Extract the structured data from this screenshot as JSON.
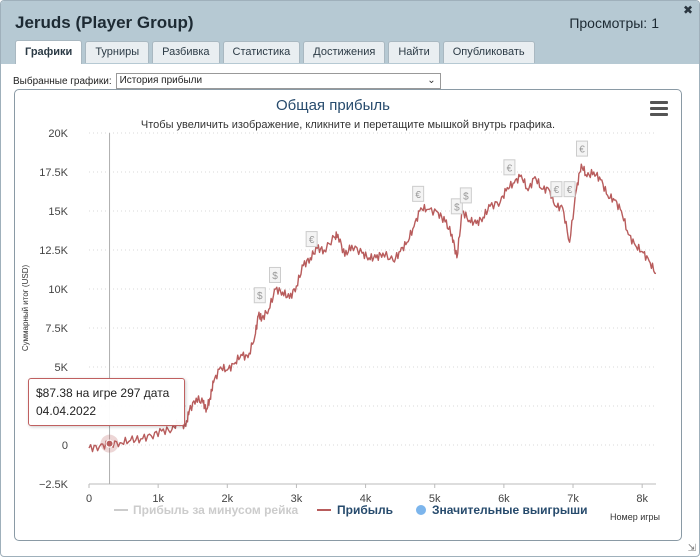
{
  "window": {
    "title": "Jeruds (Player Group)",
    "views_label": "Просмотры:",
    "views_count": "1",
    "close_glyph": "✖"
  },
  "tabs": [
    {
      "label": "Графики",
      "active": true
    },
    {
      "label": "Турниры",
      "active": false
    },
    {
      "label": "Разбивка",
      "active": false
    },
    {
      "label": "Статистика",
      "active": false
    },
    {
      "label": "Достижения",
      "active": false
    },
    {
      "label": "Найти",
      "active": false
    },
    {
      "label": "Опубликовать",
      "active": false
    }
  ],
  "selector": {
    "label": "Выбранные графики:",
    "value": "История прибыли"
  },
  "tooltip": {
    "line1": "$87.38 на игре 297 дата",
    "line2": "04.04.2022"
  },
  "colors": {
    "profit": "#b85c5c",
    "rake": "#cccccc",
    "big_wins": "#7cb5ec",
    "title": "#274b6d",
    "marker_border": "#cccccc"
  },
  "chart_data": {
    "type": "line",
    "title": "Общая прибыль",
    "subtitle": "Чтобы увеличить изображение, кликните и перетащите мышкой внутрь графика.",
    "xlabel": "Номер игры",
    "ylabel": "Суммарный итог (USD)",
    "xlim": [
      0,
      8200
    ],
    "ylim": [
      -2500,
      20000
    ],
    "x_ticks": [
      {
        "v": 0,
        "label": "0"
      },
      {
        "v": 1000,
        "label": "1k"
      },
      {
        "v": 2000,
        "label": "2k"
      },
      {
        "v": 3000,
        "label": "3k"
      },
      {
        "v": 4000,
        "label": "4k"
      },
      {
        "v": 5000,
        "label": "5k"
      },
      {
        "v": 6000,
        "label": "6k"
      },
      {
        "v": 7000,
        "label": "7k"
      },
      {
        "v": 8000,
        "label": "8k"
      }
    ],
    "y_ticks": [
      {
        "v": -2500,
        "label": "−2.5K"
      },
      {
        "v": 0,
        "label": "0"
      },
      {
        "v": 2500,
        "label": "2.5K"
      },
      {
        "v": 5000,
        "label": "5K"
      },
      {
        "v": 7500,
        "label": "7.5K"
      },
      {
        "v": 10000,
        "label": "10K"
      },
      {
        "v": 12500,
        "label": "12.5K"
      },
      {
        "v": 15000,
        "label": "15K"
      },
      {
        "v": 17500,
        "label": "17.5K"
      },
      {
        "v": 20000,
        "label": "20K"
      }
    ],
    "grid": "horizontal-dotted",
    "legend_position": "bottom",
    "series": [
      {
        "name": "Прибыль за минусом рейка",
        "visible": false,
        "points": []
      },
      {
        "name": "Прибыль",
        "visible": true,
        "points": [
          [
            0,
            -200
          ],
          [
            150,
            -100
          ],
          [
            297,
            87
          ],
          [
            450,
            150
          ],
          [
            600,
            300
          ],
          [
            750,
            400
          ],
          [
            900,
            600
          ],
          [
            1050,
            900
          ],
          [
            1200,
            1000
          ],
          [
            1300,
            1500
          ],
          [
            1400,
            1200
          ],
          [
            1450,
            2200
          ],
          [
            1550,
            3000
          ],
          [
            1650,
            2700
          ],
          [
            1700,
            2300
          ],
          [
            1750,
            3000
          ],
          [
            1800,
            4000
          ],
          [
            1900,
            5000
          ],
          [
            2000,
            4800
          ],
          [
            2100,
            5200
          ],
          [
            2200,
            5800
          ],
          [
            2300,
            5600
          ],
          [
            2400,
            7000
          ],
          [
            2450,
            8300
          ],
          [
            2500,
            8100
          ],
          [
            2600,
            8700
          ],
          [
            2700,
            10000
          ],
          [
            2800,
            9800
          ],
          [
            2900,
            9400
          ],
          [
            3000,
            10200
          ],
          [
            3100,
            11500
          ],
          [
            3200,
            12000
          ],
          [
            3300,
            12600
          ],
          [
            3400,
            12500
          ],
          [
            3550,
            13300
          ],
          [
            3600,
            13500
          ],
          [
            3700,
            12100
          ],
          [
            3800,
            12800
          ],
          [
            3950,
            12300
          ],
          [
            4050,
            12000
          ],
          [
            4150,
            12000
          ],
          [
            4250,
            12300
          ],
          [
            4400,
            11800
          ],
          [
            4500,
            12400
          ],
          [
            4600,
            13000
          ],
          [
            4700,
            14000
          ],
          [
            4800,
            15200
          ],
          [
            4900,
            15100
          ],
          [
            5050,
            14900
          ],
          [
            5150,
            14300
          ],
          [
            5250,
            13500
          ],
          [
            5320,
            12000
          ],
          [
            5400,
            15000
          ],
          [
            5500,
            14400
          ],
          [
            5600,
            14200
          ],
          [
            5700,
            14600
          ],
          [
            5800,
            15300
          ],
          [
            5950,
            15600
          ],
          [
            6050,
            16500
          ],
          [
            6150,
            16800
          ],
          [
            6250,
            17300
          ],
          [
            6350,
            16300
          ],
          [
            6450,
            17200
          ],
          [
            6550,
            16400
          ],
          [
            6650,
            16400
          ],
          [
            6750,
            15300
          ],
          [
            6850,
            15200
          ],
          [
            6950,
            13000
          ],
          [
            7050,
            16400
          ],
          [
            7120,
            18000
          ],
          [
            7200,
            17200
          ],
          [
            7300,
            17500
          ],
          [
            7400,
            17000
          ],
          [
            7500,
            16000
          ],
          [
            7600,
            15700
          ],
          [
            7700,
            15000
          ],
          [
            7800,
            13500
          ],
          [
            7900,
            12800
          ],
          [
            8000,
            12400
          ],
          [
            8100,
            11800
          ],
          [
            8200,
            11000
          ]
        ]
      },
      {
        "name": "Значительные выигрыши",
        "visible": true,
        "markers": [
          {
            "x": 2470,
            "y": 9600,
            "symbol": "$"
          },
          {
            "x": 2690,
            "y": 10900,
            "symbol": "$"
          },
          {
            "x": 3220,
            "y": 13200,
            "symbol": "€"
          },
          {
            "x": 4760,
            "y": 16100,
            "symbol": "€"
          },
          {
            "x": 5320,
            "y": 15300,
            "symbol": "$"
          },
          {
            "x": 5450,
            "y": 16000,
            "symbol": "$"
          },
          {
            "x": 6080,
            "y": 17800,
            "symbol": "€"
          },
          {
            "x": 6760,
            "y": 16400,
            "symbol": "€"
          },
          {
            "x": 6950,
            "y": 16400,
            "symbol": "€"
          },
          {
            "x": 7130,
            "y": 19000,
            "symbol": "€"
          }
        ]
      }
    ],
    "crosshair_x": 297,
    "hover_point": {
      "x": 297,
      "y": 87.38
    }
  }
}
